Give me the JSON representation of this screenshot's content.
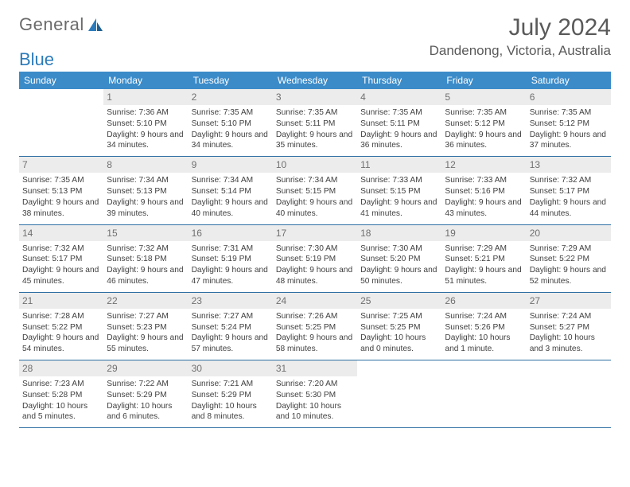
{
  "logo": {
    "text1": "General",
    "text2": "Blue"
  },
  "title": "July 2024",
  "location": "Dandenong, Victoria, Australia",
  "colors": {
    "header_bg": "#3b8bc9",
    "header_text": "#ffffff",
    "daynum_bg": "#ececec",
    "border": "#2e6fa3",
    "body_text": "#404040"
  },
  "day_headers": [
    "Sunday",
    "Monday",
    "Tuesday",
    "Wednesday",
    "Thursday",
    "Friday",
    "Saturday"
  ],
  "weeks": [
    [
      null,
      {
        "n": "1",
        "sr": "7:36 AM",
        "ss": "5:10 PM",
        "dl": "9 hours and 34 minutes."
      },
      {
        "n": "2",
        "sr": "7:35 AM",
        "ss": "5:10 PM",
        "dl": "9 hours and 34 minutes."
      },
      {
        "n": "3",
        "sr": "7:35 AM",
        "ss": "5:11 PM",
        "dl": "9 hours and 35 minutes."
      },
      {
        "n": "4",
        "sr": "7:35 AM",
        "ss": "5:11 PM",
        "dl": "9 hours and 36 minutes."
      },
      {
        "n": "5",
        "sr": "7:35 AM",
        "ss": "5:12 PM",
        "dl": "9 hours and 36 minutes."
      },
      {
        "n": "6",
        "sr": "7:35 AM",
        "ss": "5:12 PM",
        "dl": "9 hours and 37 minutes."
      }
    ],
    [
      {
        "n": "7",
        "sr": "7:35 AM",
        "ss": "5:13 PM",
        "dl": "9 hours and 38 minutes."
      },
      {
        "n": "8",
        "sr": "7:34 AM",
        "ss": "5:13 PM",
        "dl": "9 hours and 39 minutes."
      },
      {
        "n": "9",
        "sr": "7:34 AM",
        "ss": "5:14 PM",
        "dl": "9 hours and 40 minutes."
      },
      {
        "n": "10",
        "sr": "7:34 AM",
        "ss": "5:15 PM",
        "dl": "9 hours and 40 minutes."
      },
      {
        "n": "11",
        "sr": "7:33 AM",
        "ss": "5:15 PM",
        "dl": "9 hours and 41 minutes."
      },
      {
        "n": "12",
        "sr": "7:33 AM",
        "ss": "5:16 PM",
        "dl": "9 hours and 43 minutes."
      },
      {
        "n": "13",
        "sr": "7:32 AM",
        "ss": "5:17 PM",
        "dl": "9 hours and 44 minutes."
      }
    ],
    [
      {
        "n": "14",
        "sr": "7:32 AM",
        "ss": "5:17 PM",
        "dl": "9 hours and 45 minutes."
      },
      {
        "n": "15",
        "sr": "7:32 AM",
        "ss": "5:18 PM",
        "dl": "9 hours and 46 minutes."
      },
      {
        "n": "16",
        "sr": "7:31 AM",
        "ss": "5:19 PM",
        "dl": "9 hours and 47 minutes."
      },
      {
        "n": "17",
        "sr": "7:30 AM",
        "ss": "5:19 PM",
        "dl": "9 hours and 48 minutes."
      },
      {
        "n": "18",
        "sr": "7:30 AM",
        "ss": "5:20 PM",
        "dl": "9 hours and 50 minutes."
      },
      {
        "n": "19",
        "sr": "7:29 AM",
        "ss": "5:21 PM",
        "dl": "9 hours and 51 minutes."
      },
      {
        "n": "20",
        "sr": "7:29 AM",
        "ss": "5:22 PM",
        "dl": "9 hours and 52 minutes."
      }
    ],
    [
      {
        "n": "21",
        "sr": "7:28 AM",
        "ss": "5:22 PM",
        "dl": "9 hours and 54 minutes."
      },
      {
        "n": "22",
        "sr": "7:27 AM",
        "ss": "5:23 PM",
        "dl": "9 hours and 55 minutes."
      },
      {
        "n": "23",
        "sr": "7:27 AM",
        "ss": "5:24 PM",
        "dl": "9 hours and 57 minutes."
      },
      {
        "n": "24",
        "sr": "7:26 AM",
        "ss": "5:25 PM",
        "dl": "9 hours and 58 minutes."
      },
      {
        "n": "25",
        "sr": "7:25 AM",
        "ss": "5:25 PM",
        "dl": "10 hours and 0 minutes."
      },
      {
        "n": "26",
        "sr": "7:24 AM",
        "ss": "5:26 PM",
        "dl": "10 hours and 1 minute."
      },
      {
        "n": "27",
        "sr": "7:24 AM",
        "ss": "5:27 PM",
        "dl": "10 hours and 3 minutes."
      }
    ],
    [
      {
        "n": "28",
        "sr": "7:23 AM",
        "ss": "5:28 PM",
        "dl": "10 hours and 5 minutes."
      },
      {
        "n": "29",
        "sr": "7:22 AM",
        "ss": "5:29 PM",
        "dl": "10 hours and 6 minutes."
      },
      {
        "n": "30",
        "sr": "7:21 AM",
        "ss": "5:29 PM",
        "dl": "10 hours and 8 minutes."
      },
      {
        "n": "31",
        "sr": "7:20 AM",
        "ss": "5:30 PM",
        "dl": "10 hours and 10 minutes."
      },
      null,
      null,
      null
    ]
  ],
  "labels": {
    "sunrise": "Sunrise:",
    "sunset": "Sunset:",
    "daylight": "Daylight:"
  }
}
